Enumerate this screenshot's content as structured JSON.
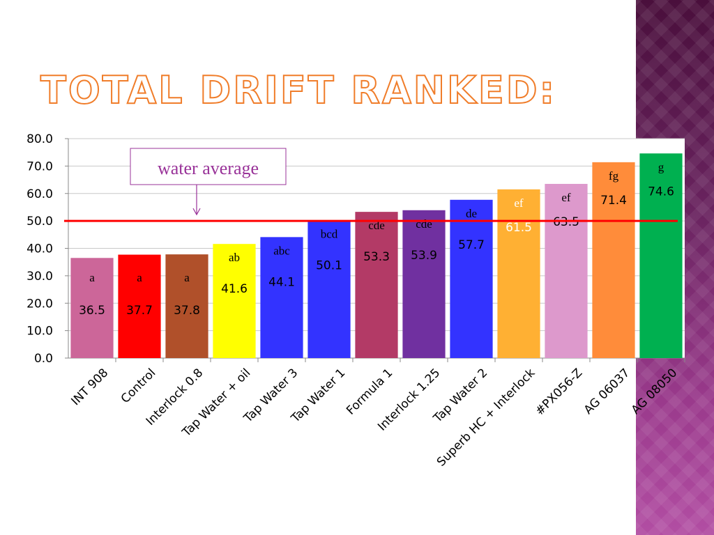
{
  "slide": {
    "title": "Total Drift Ranked:"
  },
  "chart_data": {
    "type": "bar",
    "categories": [
      "INT 908",
      "Control",
      "Interlock 0.8",
      "Tap Water + oil",
      "Tap Water 3",
      "Tap Water 1",
      "Formula 1",
      "Interlock 1.25",
      "Tap Water 2",
      "Superb HC + Interlock",
      "#PX056-Z",
      "AG 06037",
      "AG 08050"
    ],
    "values": [
      36.5,
      37.7,
      37.8,
      41.6,
      44.1,
      50.1,
      53.3,
      53.9,
      57.7,
      61.5,
      63.5,
      71.4,
      74.6
    ],
    "value_labels": [
      "36.5",
      "37.7",
      "37.8",
      "41.6",
      "44.1",
      "50.1",
      "53.3",
      "53.9",
      "57.7",
      "61.5",
      "63.5",
      "71.4",
      "74.6"
    ],
    "groups": [
      "a",
      "a",
      "a",
      "ab",
      "abc",
      "bcd",
      "cde",
      "cde",
      "de",
      "ef",
      "ef",
      "fg",
      "g"
    ],
    "colors": [
      "#cc6699",
      "#ff0000",
      "#b0502a",
      "#ffff00",
      "#3333ff",
      "#3333ff",
      "#b33a66",
      "#7030a0",
      "#3333ff",
      "#ffb033",
      "#dd99cc",
      "#ff8c3a",
      "#00b050"
    ],
    "label_colors": [
      "#000000",
      "#000000",
      "#000000",
      "#000000",
      "#000000",
      "#000000",
      "#000000",
      "#000000",
      "#000000",
      "#ffffff",
      "#000000",
      "#000000",
      "#000000"
    ],
    "ylim": [
      0,
      80
    ],
    "yticks": [
      "0.0",
      "10.0",
      "20.0",
      "30.0",
      "40.0",
      "50.0",
      "60.0",
      "70.0",
      "80.0"
    ],
    "ytick_values": [
      0,
      10,
      20,
      30,
      40,
      50,
      60,
      70,
      80
    ],
    "grid": true,
    "reference_line": {
      "value": 50,
      "color": "#ff0000",
      "label": "water average"
    },
    "annotation_color": "#993399"
  }
}
